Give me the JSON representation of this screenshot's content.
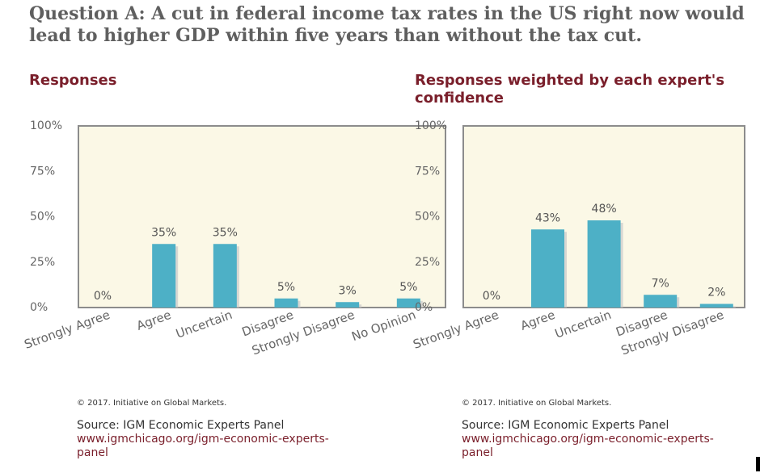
{
  "question": "Question A: A cut in federal income tax rates in the US right now would lead to higher GDP within five years than without the tax cut.",
  "chart_data": [
    {
      "type": "bar",
      "title": "Responses",
      "categories": [
        "Strongly Agree",
        "Agree",
        "Uncertain",
        "Disagree",
        "Strongly Disagree",
        "No Opinion"
      ],
      "values": [
        0,
        35,
        35,
        5,
        3,
        5
      ],
      "value_labels": [
        "0%",
        "35%",
        "35%",
        "5%",
        "3%",
        "5%"
      ],
      "y_ticks": [
        "100%",
        "75%",
        "50%",
        "25%",
        "0%"
      ],
      "ylim": [
        0,
        100
      ],
      "xlabel": "",
      "ylabel": "",
      "bar_color": "#4db0c6",
      "plot_bg": "#fbf8e6",
      "copyright": "© 2017. Initiative on Global Markets.",
      "source": "Source: IGM Economic Experts Panel",
      "url": "www.igmchicago.org/igm-economic-experts-panel"
    },
    {
      "type": "bar",
      "title": "Responses weighted by each expert's confidence",
      "title_lines": [
        "Responses weighted by each expert's",
        "confidence"
      ],
      "categories": [
        "Strongly Agree",
        "Agree",
        "Uncertain",
        "Disagree",
        "Strongly Disagree"
      ],
      "values": [
        0,
        43,
        48,
        7,
        2
      ],
      "value_labels": [
        "0%",
        "43%",
        "48%",
        "7%",
        "2%"
      ],
      "y_ticks": [
        "100%",
        "75%",
        "50%",
        "25%",
        "0%"
      ],
      "ylim": [
        0,
        100
      ],
      "xlabel": "",
      "ylabel": "",
      "bar_color": "#4db0c6",
      "plot_bg": "#fbf8e6",
      "copyright": "© 2017. Initiative on Global Markets.",
      "source": "Source: IGM Economic Experts Panel",
      "url": "www.igmchicago.org/igm-economic-experts-panel"
    }
  ]
}
